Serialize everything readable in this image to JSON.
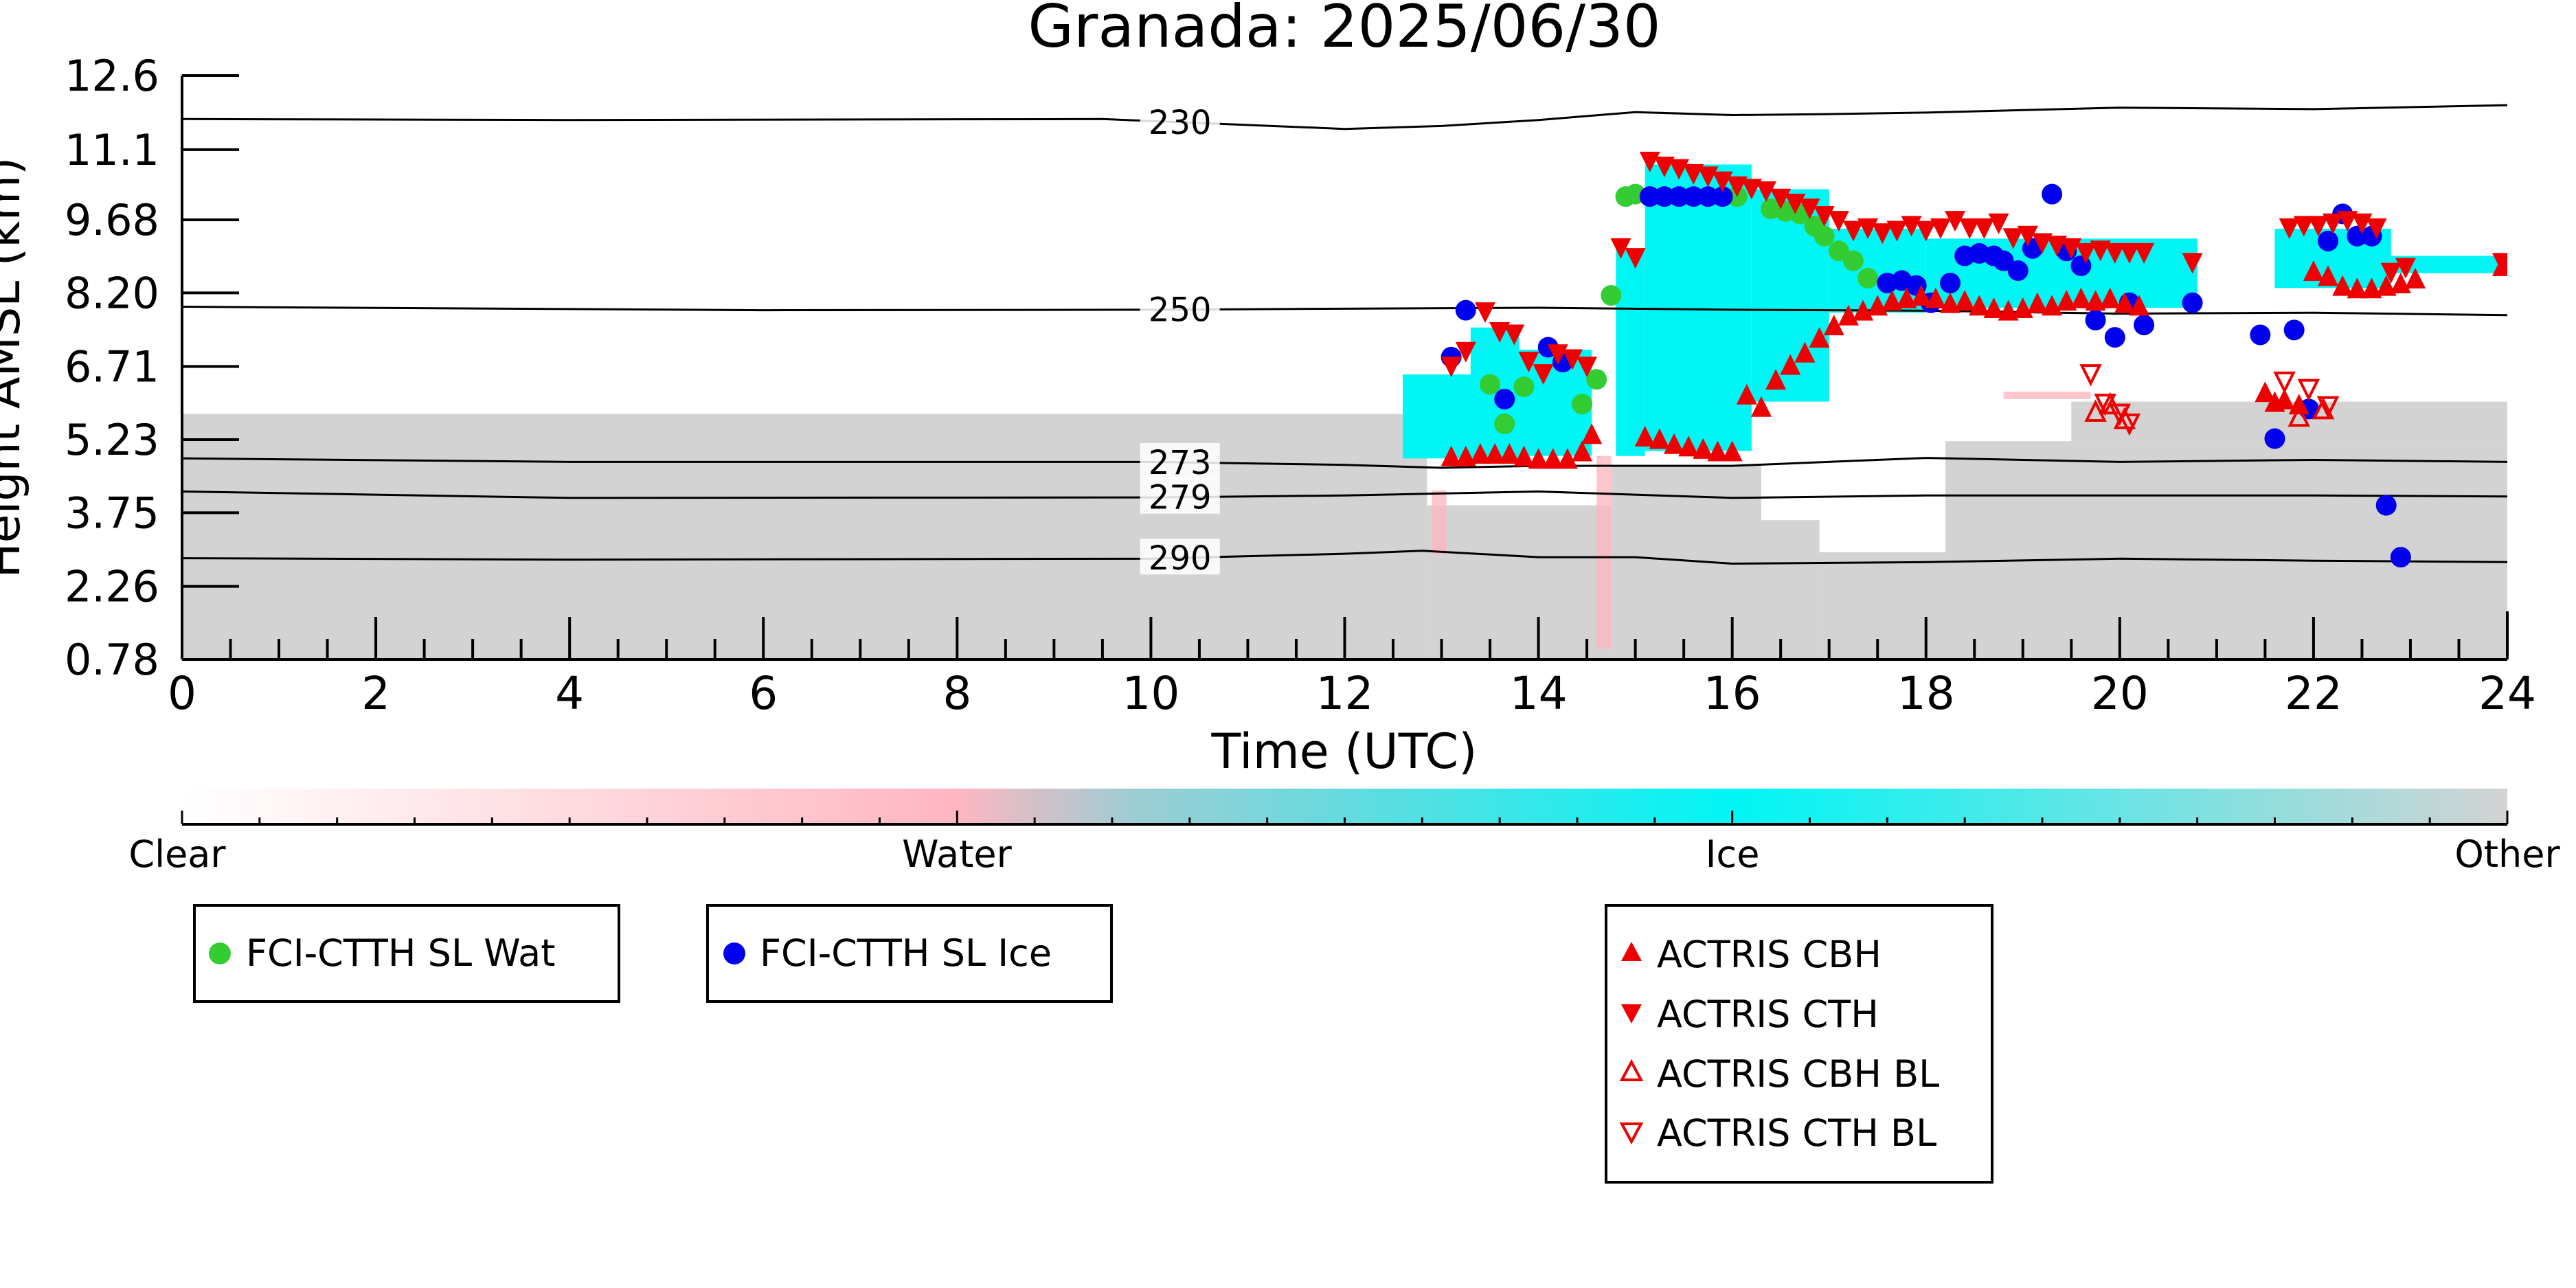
{
  "chart_data": {
    "type": "scatter",
    "title": "Granada: 2025/06/30",
    "xlabel": "Time (UTC)",
    "ylabel": "Height AMSL (km)",
    "xlim": [
      0,
      24
    ],
    "ylim": [
      0.78,
      12.6
    ],
    "x_ticks": [
      "0",
      "2",
      "4",
      "6",
      "8",
      "10",
      "12",
      "14",
      "16",
      "18",
      "20",
      "22",
      "24"
    ],
    "y_ticks": [
      "0.78",
      "2.26",
      "3.75",
      "5.23",
      "6.71",
      "8.20",
      "9.68",
      "11.1",
      "12.6"
    ],
    "colorbar": {
      "labels": [
        "Clear",
        "Water",
        "Ice",
        "Other"
      ],
      "colors": [
        "#ffffff",
        "#ffb6c1",
        "#00f5f5",
        "#d3d3d3"
      ]
    },
    "contours": [
      {
        "label": "230",
        "points": [
          [
            0,
            11.72
          ],
          [
            4,
            11.7
          ],
          [
            9.5,
            11.72
          ],
          [
            12,
            11.52
          ],
          [
            13,
            11.58
          ],
          [
            14,
            11.7
          ],
          [
            15,
            11.86
          ],
          [
            16,
            11.8
          ],
          [
            17,
            11.82
          ],
          [
            18,
            11.85
          ],
          [
            20,
            11.95
          ],
          [
            22,
            11.92
          ],
          [
            24,
            12.0
          ]
        ]
      },
      {
        "label": "250",
        "points": [
          [
            0,
            7.92
          ],
          [
            6,
            7.85
          ],
          [
            10,
            7.86
          ],
          [
            12,
            7.88
          ],
          [
            14,
            7.9
          ],
          [
            16,
            7.86
          ],
          [
            18,
            7.84
          ],
          [
            20,
            7.78
          ],
          [
            22,
            7.8
          ],
          [
            24,
            7.75
          ]
        ]
      },
      {
        "label": "273",
        "points": [
          [
            0,
            4.85
          ],
          [
            4,
            4.78
          ],
          [
            10,
            4.78
          ],
          [
            12,
            4.72
          ],
          [
            13,
            4.66
          ],
          [
            14,
            4.7
          ],
          [
            16,
            4.7
          ],
          [
            18,
            4.86
          ],
          [
            20,
            4.78
          ],
          [
            22,
            4.82
          ],
          [
            24,
            4.78
          ]
        ]
      },
      {
        "label": "279",
        "points": [
          [
            0,
            4.18
          ],
          [
            4,
            4.05
          ],
          [
            10,
            4.06
          ],
          [
            12,
            4.1
          ],
          [
            14,
            4.18
          ],
          [
            16,
            4.05
          ],
          [
            18,
            4.1
          ],
          [
            20,
            4.1
          ],
          [
            22,
            4.1
          ],
          [
            24,
            4.08
          ]
        ]
      },
      {
        "label": "290",
        "points": [
          [
            0,
            2.83
          ],
          [
            4,
            2.8
          ],
          [
            10,
            2.82
          ],
          [
            12,
            2.92
          ],
          [
            12.8,
            2.98
          ],
          [
            14,
            2.85
          ],
          [
            15,
            2.85
          ],
          [
            16,
            2.72
          ],
          [
            18,
            2.75
          ],
          [
            20,
            2.82
          ],
          [
            22,
            2.78
          ],
          [
            24,
            2.75
          ]
        ]
      }
    ],
    "regions": [
      {
        "class": "Other",
        "x0": 0,
        "x1": 12.85,
        "y0": 0.78,
        "y1": 5.75
      },
      {
        "class": "Other",
        "x0": 12.85,
        "x1": 14.75,
        "y0": 0.78,
        "y1": 3.9
      },
      {
        "class": "Other",
        "x0": 14.75,
        "x1": 16.3,
        "y0": 0.78,
        "y1": 4.7
      },
      {
        "class": "Other",
        "x0": 16.3,
        "x1": 16.9,
        "y0": 0.78,
        "y1": 3.6
      },
      {
        "class": "Other",
        "x0": 16.9,
        "x1": 18.2,
        "y0": 0.78,
        "y1": 2.95
      },
      {
        "class": "Other",
        "x0": 18.2,
        "x1": 24,
        "y0": 0.78,
        "y1": 5.2
      },
      {
        "class": "Other",
        "x0": 19.5,
        "x1": 24,
        "y0": 5.2,
        "y1": 6.0
      },
      {
        "class": "Ice",
        "x0": 12.6,
        "x1": 13.5,
        "y0": 4.85,
        "y1": 6.55
      },
      {
        "class": "Ice",
        "x0": 13.3,
        "x1": 13.8,
        "y0": 4.85,
        "y1": 7.5
      },
      {
        "class": "Ice",
        "x0": 13.8,
        "x1": 14.55,
        "y0": 4.9,
        "y1": 7.05
      },
      {
        "class": "Ice",
        "x0": 14.8,
        "x1": 15.1,
        "y0": 4.9,
        "y1": 9.1
      },
      {
        "class": "Ice",
        "x0": 15.1,
        "x1": 16.2,
        "y0": 5.0,
        "y1": 10.8
      },
      {
        "class": "Ice",
        "x0": 16.2,
        "x1": 17.0,
        "y0": 6.0,
        "y1": 10.3
      },
      {
        "class": "Ice",
        "x0": 17.0,
        "x1": 18.0,
        "y0": 7.8,
        "y1": 9.5
      },
      {
        "class": "Ice",
        "x0": 18.0,
        "x1": 20.8,
        "y0": 7.9,
        "y1": 9.3
      },
      {
        "class": "Ice",
        "x0": 21.6,
        "x1": 22.8,
        "y0": 8.3,
        "y1": 9.5
      },
      {
        "class": "Ice",
        "x0": 22.8,
        "x1": 23.9,
        "y0": 8.6,
        "y1": 8.95
      },
      {
        "class": "Water",
        "x0": 14.6,
        "x1": 14.75,
        "y0": 1.0,
        "y1": 4.9
      },
      {
        "class": "Water",
        "x0": 12.9,
        "x1": 13.05,
        "y0": 2.9,
        "y1": 4.2
      },
      {
        "class": "Water",
        "x0": 18.8,
        "x1": 19.7,
        "y0": 6.05,
        "y1": 6.2
      }
    ],
    "series": [
      {
        "name": "FCI-CTTH SL Wat",
        "marker": "circle",
        "color": "#33cc33",
        "x": [
          13.5,
          13.65,
          13.85,
          14.45,
          14.6,
          14.75,
          14.9,
          15.0,
          16.05,
          16.4,
          16.55,
          16.7,
          16.85,
          16.95,
          17.1,
          17.25,
          17.4
        ],
        "y": [
          6.35,
          5.55,
          6.3,
          5.95,
          6.45,
          8.15,
          10.15,
          10.2,
          10.15,
          9.9,
          9.85,
          9.8,
          9.55,
          9.35,
          9.05,
          8.85,
          8.5
        ]
      },
      {
        "name": "FCI-CTTH SL Ice",
        "marker": "circle",
        "color": "#0000ee",
        "x": [
          13.1,
          13.25,
          13.65,
          14.1,
          14.25,
          15.15,
          15.3,
          15.45,
          15.6,
          15.75,
          15.9,
          17.6,
          17.75,
          17.9,
          18.05,
          18.25,
          18.4,
          18.55,
          18.7,
          18.8,
          18.95,
          19.1,
          19.3,
          19.45,
          19.6,
          19.75,
          19.95,
          20.1,
          20.25,
          20.75,
          21.45,
          21.6,
          21.8,
          21.95,
          22.15,
          22.3,
          22.45,
          22.6,
          22.75,
          22.9
        ],
        "y": [
          6.9,
          7.85,
          6.05,
          7.1,
          6.8,
          10.15,
          10.15,
          10.15,
          10.15,
          10.15,
          10.15,
          8.4,
          8.45,
          8.35,
          8.0,
          8.4,
          8.95,
          9.0,
          8.95,
          8.85,
          8.65,
          9.1,
          10.2,
          9.05,
          8.75,
          7.65,
          7.3,
          8.0,
          7.55,
          8.0,
          7.35,
          5.25,
          7.45,
          5.85,
          9.25,
          9.8,
          9.35,
          9.35,
          3.9,
          2.85
        ]
      },
      {
        "name": "ACTRIS CBH",
        "marker": "triangle-up",
        "color": "#ee0000",
        "x": [
          13.1,
          13.25,
          13.4,
          13.55,
          13.7,
          13.85,
          14.0,
          14.15,
          14.3,
          14.45,
          14.55,
          15.1,
          15.25,
          15.4,
          15.55,
          15.7,
          15.85,
          16.0,
          16.15,
          16.3,
          16.45,
          16.6,
          16.75,
          16.9,
          17.05,
          17.2,
          17.35,
          17.5,
          17.65,
          17.8,
          17.95,
          18.1,
          18.25,
          18.4,
          18.55,
          18.7,
          18.85,
          19.0,
          19.15,
          19.3,
          19.45,
          19.6,
          19.75,
          19.9,
          20.05,
          20.2,
          21.5,
          21.6,
          21.7,
          21.85,
          22.0,
          22.15,
          22.3,
          22.45,
          22.6,
          22.75,
          22.9,
          23.05,
          23.95
        ],
        "y": [
          4.9,
          4.9,
          4.95,
          4.95,
          4.95,
          4.9,
          4.85,
          4.85,
          4.85,
          5.0,
          5.35,
          5.3,
          5.25,
          5.15,
          5.1,
          5.05,
          5.0,
          5.0,
          6.15,
          5.9,
          6.45,
          6.75,
          7.0,
          7.3,
          7.55,
          7.75,
          7.85,
          7.95,
          8.05,
          8.1,
          8.15,
          8.1,
          8.0,
          8.05,
          7.95,
          7.9,
          7.85,
          7.9,
          8.0,
          7.95,
          8.05,
          8.1,
          8.05,
          8.1,
          8.0,
          7.95,
          6.2,
          6.0,
          6.05,
          5.95,
          8.65,
          8.55,
          8.35,
          8.3,
          8.3,
          8.35,
          8.4,
          8.5,
          8.75
        ]
      },
      {
        "name": "ACTRIS CTH",
        "marker": "triangle-down",
        "color": "#ee0000",
        "x": [
          13.1,
          13.25,
          13.45,
          13.6,
          13.75,
          13.9,
          14.05,
          14.2,
          14.35,
          14.5,
          14.85,
          15.0,
          15.15,
          15.3,
          15.45,
          15.6,
          15.75,
          15.9,
          16.05,
          16.2,
          16.35,
          16.5,
          16.65,
          16.8,
          16.95,
          17.1,
          17.25,
          17.4,
          17.55,
          17.7,
          17.85,
          18.0,
          18.15,
          18.3,
          18.45,
          18.6,
          18.75,
          18.9,
          19.05,
          19.2,
          19.35,
          19.5,
          19.65,
          19.8,
          19.95,
          20.1,
          20.25,
          20.75,
          21.75,
          21.9,
          22.05,
          22.2,
          22.35,
          22.5,
          22.65,
          22.8,
          22.95,
          23.95
        ],
        "y": [
          6.7,
          7.0,
          7.8,
          7.4,
          7.35,
          6.8,
          6.55,
          6.95,
          6.85,
          6.7,
          9.1,
          8.9,
          10.85,
          10.75,
          10.7,
          10.6,
          10.55,
          10.45,
          10.35,
          10.3,
          10.25,
          10.1,
          10.0,
          9.9,
          9.75,
          9.65,
          9.45,
          9.5,
          9.4,
          9.45,
          9.55,
          9.45,
          9.5,
          9.65,
          9.5,
          9.5,
          9.6,
          9.3,
          9.35,
          9.2,
          9.15,
          9.1,
          9.0,
          9.05,
          9.0,
          9.0,
          9.0,
          8.8,
          9.5,
          9.55,
          9.55,
          9.6,
          9.65,
          9.6,
          9.5,
          8.6,
          8.7,
          8.8
        ]
      },
      {
        "name": "ACTRIS CBH BL",
        "marker": "triangle-up-open",
        "color": "#ee0000",
        "x": [
          19.75,
          19.9,
          20.05,
          21.85,
          22.1
        ],
        "y": [
          5.8,
          5.95,
          5.65,
          5.7,
          5.85
        ]
      },
      {
        "name": "ACTRIS CTH BL",
        "marker": "triangle-down-open",
        "color": "#ee0000",
        "x": [
          19.7,
          19.85,
          20.0,
          20.1,
          21.7,
          21.95,
          22.15
        ],
        "y": [
          6.55,
          5.95,
          5.75,
          5.55,
          6.4,
          6.25,
          5.9
        ]
      }
    ],
    "legends": [
      {
        "entries": [
          "FCI-CTTH SL Wat"
        ]
      },
      {
        "entries": [
          "FCI-CTTH SL Ice"
        ]
      },
      {
        "entries": [
          "ACTRIS CBH",
          "ACTRIS CTH",
          "ACTRIS CBH BL",
          "ACTRIS CTH BL"
        ]
      }
    ],
    "grid": false
  }
}
